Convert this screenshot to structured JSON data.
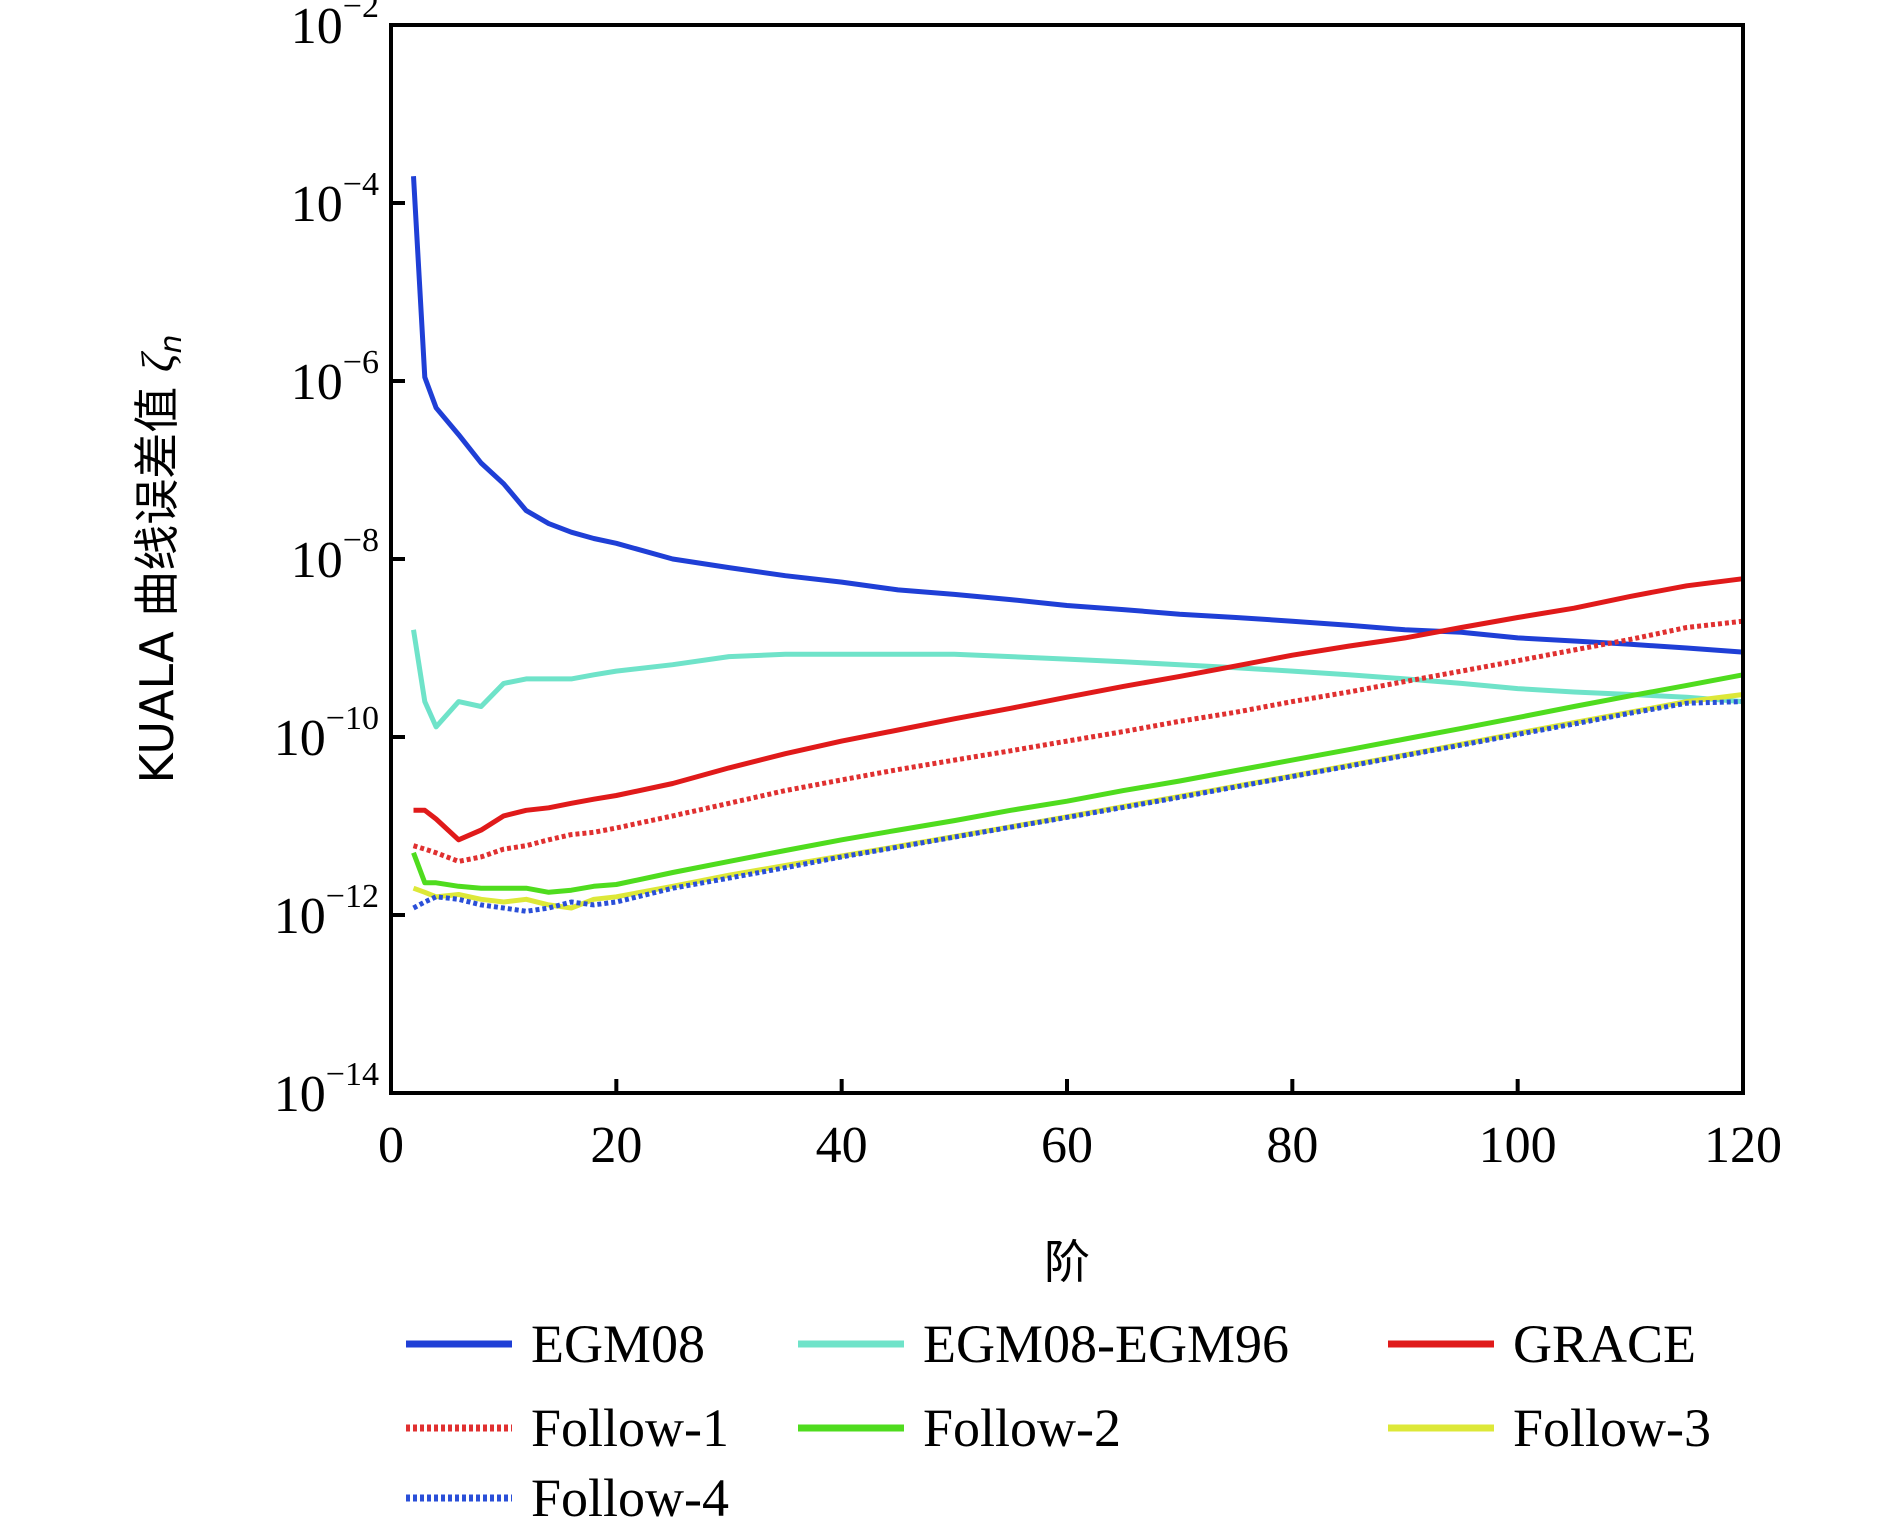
{
  "chart_data": {
    "type": "line",
    "title": "",
    "xlabel": "阶",
    "ylabel_prefix": "KUALA 曲线误差值 ",
    "ylabel_symbol": "ζ",
    "ylabel_subscript": "n",
    "xlim": [
      0,
      120
    ],
    "ylim_exp": [
      -14,
      -2
    ],
    "yscale": "log",
    "x_ticks": [
      "0",
      "20",
      "40",
      "60",
      "80",
      "100",
      "120"
    ],
    "y_ticks": [
      {
        "base": "10",
        "exp": "−2"
      },
      {
        "base": "10",
        "exp": "−4"
      },
      {
        "base": "10",
        "exp": "−6"
      },
      {
        "base": "10",
        "exp": "−8"
      },
      {
        "base": "10",
        "exp": "−10"
      },
      {
        "base": "10",
        "exp": "−12"
      },
      {
        "base": "10",
        "exp": "−14"
      }
    ],
    "grid": false,
    "legend_position": "bottom",
    "x": [
      2,
      3,
      4,
      6,
      8,
      10,
      12,
      14,
      16,
      18,
      20,
      25,
      30,
      35,
      40,
      45,
      50,
      55,
      60,
      65,
      70,
      75,
      80,
      85,
      90,
      95,
      100,
      105,
      110,
      115,
      120
    ],
    "series": [
      {
        "name": "EGM08",
        "color": "#1f3fd6",
        "style": "solid",
        "values": [
          0.0002,
          1.1e-06,
          5e-07,
          2.5e-07,
          1.2e-07,
          7e-08,
          3.5e-08,
          2.5e-08,
          2e-08,
          1.7e-08,
          1.5e-08,
          1e-08,
          8e-09,
          6.5e-09,
          5.5e-09,
          4.5e-09,
          4e-09,
          3.5e-09,
          3e-09,
          2.7e-09,
          2.4e-09,
          2.2e-09,
          2e-09,
          1.8e-09,
          1.6e-09,
          1.5e-09,
          1.3e-09,
          1.2e-09,
          1.1e-09,
          1e-09,
          9e-10
        ]
      },
      {
        "name": "EGM08-EGM96",
        "color": "#6fe3c9",
        "style": "solid",
        "values": [
          1.6e-09,
          2.5e-10,
          1.3e-10,
          2.5e-10,
          2.2e-10,
          4e-10,
          4.5e-10,
          4.5e-10,
          4.5e-10,
          5e-10,
          5.5e-10,
          6.5e-10,
          8e-10,
          8.5e-10,
          8.5e-10,
          8.5e-10,
          8.5e-10,
          8e-10,
          7.5e-10,
          7e-10,
          6.5e-10,
          6e-10,
          5.5e-10,
          5e-10,
          4.5e-10,
          4e-10,
          3.5e-10,
          3.2e-10,
          3e-10,
          2.8e-10,
          2.5e-10
        ]
      },
      {
        "name": "GRACE",
        "color": "#e01a1a",
        "style": "solid",
        "values": [
          1.5e-11,
          1.5e-11,
          1.2e-11,
          7e-12,
          9e-12,
          1.3e-11,
          1.5e-11,
          1.6e-11,
          1.8e-11,
          2e-11,
          2.2e-11,
          3e-11,
          4.5e-11,
          6.5e-11,
          9e-11,
          1.2e-10,
          1.6e-10,
          2.1e-10,
          2.8e-10,
          3.7e-10,
          4.8e-10,
          6.3e-10,
          8.3e-10,
          1.05e-09,
          1.3e-09,
          1.7e-09,
          2.2e-09,
          2.8e-09,
          3.8e-09,
          5e-09,
          6e-09
        ]
      },
      {
        "name": "Follow-1",
        "color": "#e03030",
        "style": "dotted",
        "values": [
          6e-12,
          5.5e-12,
          5e-12,
          4e-12,
          4.5e-12,
          5.5e-12,
          6e-12,
          7e-12,
          8e-12,
          8.5e-12,
          9.5e-12,
          1.3e-11,
          1.8e-11,
          2.5e-11,
          3.3e-11,
          4.3e-11,
          5.5e-11,
          7e-11,
          9e-11,
          1.15e-10,
          1.5e-10,
          1.9e-10,
          2.5e-10,
          3.2e-10,
          4.2e-10,
          5.5e-10,
          7.2e-10,
          9.5e-10,
          1.25e-09,
          1.7e-09,
          2e-09
        ]
      },
      {
        "name": "Follow-2",
        "color": "#4fdc1e",
        "style": "solid",
        "values": [
          5e-12,
          2.3e-12,
          2.3e-12,
          2.1e-12,
          2e-12,
          2e-12,
          2e-12,
          1.8e-12,
          1.9e-12,
          2.1e-12,
          2.2e-12,
          3e-12,
          4e-12,
          5.3e-12,
          7e-12,
          9e-12,
          1.15e-11,
          1.5e-11,
          1.9e-11,
          2.5e-11,
          3.2e-11,
          4.2e-11,
          5.5e-11,
          7.2e-11,
          9.5e-11,
          1.25e-10,
          1.65e-10,
          2.2e-10,
          2.9e-10,
          3.8e-10,
          5e-10
        ]
      },
      {
        "name": "Follow-3",
        "color": "#dde838",
        "style": "solid",
        "values": [
          2e-12,
          1.8e-12,
          1.6e-12,
          1.7e-12,
          1.5e-12,
          1.4e-12,
          1.5e-12,
          1.3e-12,
          1.2e-12,
          1.5e-12,
          1.6e-12,
          2.1e-12,
          2.8e-12,
          3.6e-12,
          4.6e-12,
          5.9e-12,
          7.6e-12,
          9.8e-12,
          1.27e-11,
          1.65e-11,
          2.15e-11,
          2.8e-11,
          3.65e-11,
          4.8e-11,
          6.3e-11,
          8.3e-11,
          1.1e-10,
          1.45e-10,
          1.9e-10,
          2.5e-10,
          3e-10
        ]
      },
      {
        "name": "Follow-4",
        "color": "#2a4fd8",
        "style": "dotted",
        "values": [
          1.2e-12,
          1.4e-12,
          1.6e-12,
          1.5e-12,
          1.3e-12,
          1.2e-12,
          1.1e-12,
          1.2e-12,
          1.4e-12,
          1.3e-12,
          1.4e-12,
          2e-12,
          2.6e-12,
          3.4e-12,
          4.5e-12,
          5.8e-12,
          7.5e-12,
          9.7e-12,
          1.25e-11,
          1.62e-11,
          2.1e-11,
          2.75e-11,
          3.6e-11,
          4.7e-11,
          6.2e-11,
          8.1e-11,
          1.07e-10,
          1.4e-10,
          1.85e-10,
          2.4e-10,
          2.5e-10
        ]
      }
    ]
  }
}
